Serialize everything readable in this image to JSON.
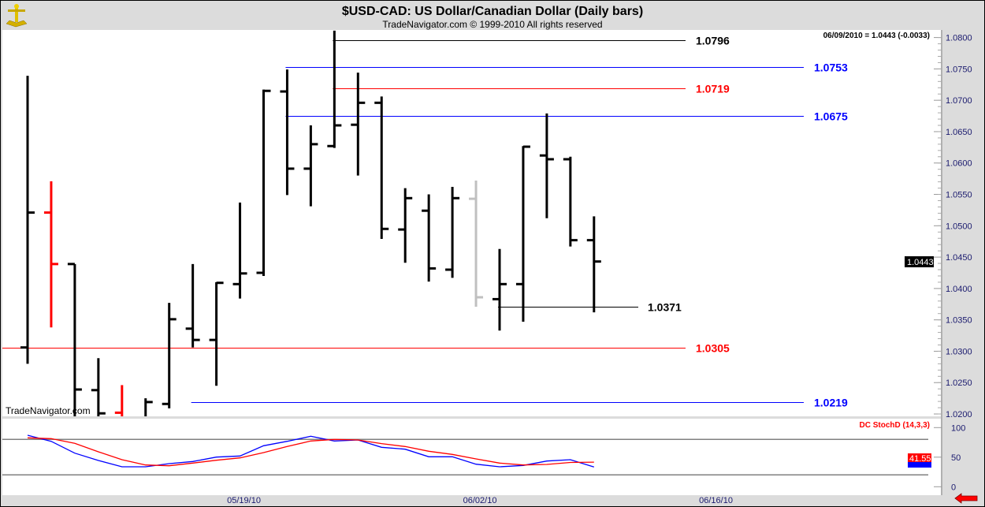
{
  "header": {
    "title": "$USD-CAD:  US Dollar/Canadian Dollar  (Daily bars)",
    "copyright": "TradeNavigator.com © 1999-2010 All rights reserved",
    "logo_icon": "sextant-icon"
  },
  "watermark": "TradeNavigator.com",
  "last_quote": "06/09/2010 = 1.0443 (-0.0033)",
  "last_price_label": "1.0443",
  "scroll_arrow_icon": "red-left-arrow-icon",
  "chart_data": [
    {
      "type": "ohlc",
      "title": "$USD-CAD:  US Dollar/Canadian Dollar  (Daily bars)",
      "ylim": [
        1.02,
        1.081
      ],
      "y_ticks": [
        "1.0800",
        "1.0750",
        "1.0700",
        "1.0650",
        "1.0600",
        "1.0550",
        "1.0500",
        "1.0450",
        "1.0400",
        "1.0350",
        "1.0300",
        "1.0250",
        "1.0200"
      ],
      "x_tick_labels": [
        {
          "label": "05/19/10",
          "bar": 9
        },
        {
          "label": "06/02/10",
          "bar": 19
        },
        {
          "label": "06/16/10",
          "bar": 29
        }
      ],
      "colors": {
        "up": "#000000",
        "red": "#ff0000",
        "gray": "#c0c0c0"
      },
      "bars": [
        {
          "o": 1.0306,
          "h": 1.0739,
          "l": 1.028,
          "c": 1.0521,
          "color": "#000000"
        },
        {
          "o": 1.0521,
          "h": 1.0571,
          "l": 1.0338,
          "c": 1.0439,
          "color": "#ff0000"
        },
        {
          "o": 1.0439,
          "h": 1.0439,
          "l": 1.019,
          "c": 1.0239,
          "color": "#000000"
        },
        {
          "o": 1.0238,
          "h": 1.0289,
          "l": 1.0185,
          "c": 1.0201,
          "color": "#000000"
        },
        {
          "o": 1.0202,
          "h": 1.0246,
          "l": 1.0185,
          "c": 1.019,
          "color": "#ff0000"
        },
        {
          "o": 1.019,
          "h": 1.0225,
          "l": 1.018,
          "c": 1.0219,
          "color": "#000000"
        },
        {
          "o": 1.0216,
          "h": 1.0377,
          "l": 1.0209,
          "c": 1.0351,
          "color": "#000000"
        },
        {
          "o": 1.0336,
          "h": 1.0439,
          "l": 1.0306,
          "c": 1.0318,
          "color": "#000000"
        },
        {
          "o": 1.0318,
          "h": 1.041,
          "l": 1.0245,
          "c": 1.0409,
          "color": "#000000"
        },
        {
          "o": 1.0407,
          "h": 1.0537,
          "l": 1.0384,
          "c": 1.0424,
          "color": "#000000"
        },
        {
          "o": 1.0425,
          "h": 1.0717,
          "l": 1.042,
          "c": 1.0715,
          "color": "#000000"
        },
        {
          "o": 1.0714,
          "h": 1.0749,
          "l": 1.0549,
          "c": 1.0591,
          "color": "#000000"
        },
        {
          "o": 1.0591,
          "h": 1.066,
          "l": 1.0531,
          "c": 1.063,
          "color": "#000000"
        },
        {
          "o": 1.0627,
          "h": 1.0811,
          "l": 1.0624,
          "c": 1.066,
          "color": "#000000"
        },
        {
          "o": 1.0661,
          "h": 1.0744,
          "l": 1.058,
          "c": 1.0696,
          "color": "#000000"
        },
        {
          "o": 1.0696,
          "h": 1.0706,
          "l": 1.0479,
          "c": 1.0495,
          "color": "#000000"
        },
        {
          "o": 1.0494,
          "h": 1.056,
          "l": 1.0441,
          "c": 1.0544,
          "color": "#000000"
        },
        {
          "o": 1.0524,
          "h": 1.055,
          "l": 1.0411,
          "c": 1.0432,
          "color": "#000000"
        },
        {
          "o": 1.043,
          "h": 1.0562,
          "l": 1.0417,
          "c": 1.0544,
          "color": "#000000"
        },
        {
          "o": 1.0543,
          "h": 1.0572,
          "l": 1.0371,
          "c": 1.0386,
          "color": "#c0c0c0"
        },
        {
          "o": 1.0383,
          "h": 1.0463,
          "l": 1.0333,
          "c": 1.0407,
          "color": "#000000"
        },
        {
          "o": 1.0407,
          "h": 1.0627,
          "l": 1.0347,
          "c": 1.0626,
          "color": "#000000"
        },
        {
          "o": 1.0612,
          "h": 1.0679,
          "l": 1.0512,
          "c": 1.0606,
          "color": "#000000"
        },
        {
          "o": 1.0606,
          "h": 1.061,
          "l": 1.0467,
          "c": 1.0477,
          "color": "#000000"
        },
        {
          "o": 1.0477,
          "h": 1.0515,
          "l": 1.0362,
          "c": 1.0443,
          "color": "#000000"
        }
      ],
      "levels": [
        {
          "value": 1.0796,
          "label": "1.0796",
          "color": "#000000",
          "from_bar": 13,
          "label_col": "near"
        },
        {
          "value": 1.0753,
          "label": "1.0753",
          "color": "#0000ff",
          "from_bar": 11,
          "label_col": "far"
        },
        {
          "value": 1.0719,
          "label": "1.0719",
          "color": "#ff0000",
          "from_bar": 13,
          "label_col": "near"
        },
        {
          "value": 1.0675,
          "label": "1.0675",
          "color": "#0000ff",
          "from_bar": 11,
          "label_col": "far"
        },
        {
          "value": 1.0371,
          "label": "1.0371",
          "color": "#000000",
          "from_bar": 20,
          "label_col": "short"
        },
        {
          "value": 1.0305,
          "label": "1.0305",
          "color": "#ff0000",
          "from_bar": -1,
          "label_col": "near"
        },
        {
          "value": 1.0219,
          "label": "1.0219",
          "color": "#0000ff",
          "from_bar": 7,
          "label_col": "far"
        }
      ]
    },
    {
      "type": "line",
      "title": "DC StochD (14,3,3)",
      "ylim": [
        0,
        100
      ],
      "y_ticks": [
        "100",
        "50",
        "0"
      ],
      "reference_lines": [
        80,
        20
      ],
      "last_value_label": "41.55",
      "series": [
        {
          "color": "#0000ff",
          "values": [
            87,
            76.8,
            56.8,
            44.4,
            33.7,
            33.7,
            39,
            42.7,
            50.1,
            52,
            69.3,
            76.8,
            85.3,
            77.3,
            79,
            66.7,
            63.5,
            50.6,
            50.6,
            38.1,
            33.7,
            36,
            43.5,
            45.7,
            33.3
          ]
        },
        {
          "color": "#ff0000",
          "values": [
            82.7,
            81.3,
            73.3,
            59,
            45.7,
            36.8,
            35.5,
            40,
            44.8,
            48.8,
            57.7,
            68,
            77.3,
            80,
            79,
            72.9,
            68,
            60,
            54.7,
            47,
            40,
            36.8,
            37.7,
            41.1,
            41.55
          ]
        }
      ]
    }
  ]
}
